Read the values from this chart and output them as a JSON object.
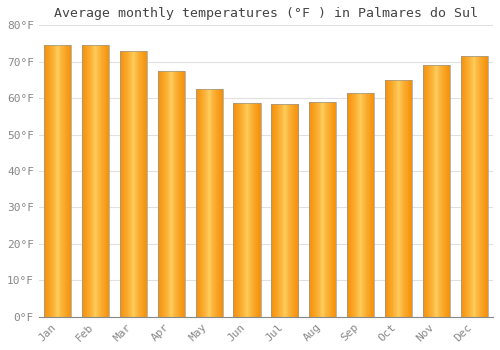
{
  "title": "Average monthly temperatures (°F ) in Palmares do Sul",
  "months": [
    "Jan",
    "Feb",
    "Mar",
    "Apr",
    "May",
    "Jun",
    "Jul",
    "Aug",
    "Sep",
    "Oct",
    "Nov",
    "Dec"
  ],
  "values": [
    74.5,
    74.5,
    73.0,
    67.5,
    62.5,
    58.8,
    58.3,
    59.0,
    61.3,
    65.0,
    69.0,
    71.5
  ],
  "bar_color_center": "#FFD060",
  "bar_color_edge": "#F5900A",
  "ylim": [
    0,
    80
  ],
  "yticks": [
    0,
    10,
    20,
    30,
    40,
    50,
    60,
    70,
    80
  ],
  "ytick_labels": [
    "0°F",
    "10°F",
    "20°F",
    "30°F",
    "40°F",
    "50°F",
    "60°F",
    "70°F",
    "80°F"
  ],
  "background_color": "#FFFFFF",
  "grid_color": "#E0E0E0",
  "title_fontsize": 9.5,
  "tick_fontsize": 8,
  "bar_outline_color": "#999999"
}
